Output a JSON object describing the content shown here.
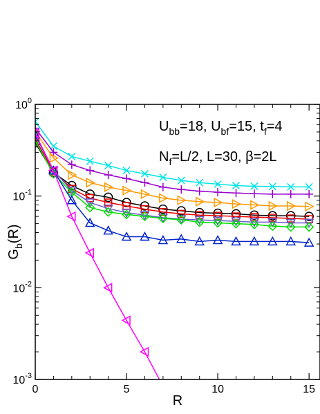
{
  "chart_data": {
    "type": "line",
    "title": "",
    "xlabel": "R",
    "ylabel_main": "G",
    "ylabel_sub": "b",
    "ylabel_tail": "(R)",
    "xlim": [
      0,
      15.6
    ],
    "ylim": [
      0.001,
      1
    ],
    "yscale": "log",
    "xticks": [
      0,
      5,
      10,
      15
    ],
    "xtick_labels": [
      "0",
      "5",
      "10",
      "15"
    ],
    "ytick_labels": [
      {
        "base": "10",
        "exp": "0"
      },
      {
        "base": "10",
        "exp": "-1"
      },
      {
        "base": "10",
        "exp": "-2"
      },
      {
        "base": "10",
        "exp": "-3"
      }
    ],
    "grid": false,
    "annotations": [
      {
        "parts": [
          {
            "t": "U",
            "sub": false
          },
          {
            "t": "bb",
            "sub": true
          },
          {
            "t": "=18, U",
            "sub": false
          },
          {
            "t": "bf",
            "sub": true
          },
          {
            "t": "=15, t",
            "sub": false
          },
          {
            "t": "f",
            "sub": true
          },
          {
            "t": "=4",
            "sub": false
          }
        ]
      },
      {
        "parts": [
          {
            "t": "N",
            "sub": false
          },
          {
            "t": "f",
            "sub": true
          },
          {
            "t": "=L/2, L=30, β=2L",
            "sub": false
          }
        ]
      }
    ],
    "series": [
      {
        "color": "#00e5e5",
        "marker": "x",
        "x": [
          0,
          1,
          2,
          3,
          4,
          5,
          6,
          7,
          8,
          9,
          10,
          11,
          12,
          13,
          14,
          15
        ],
        "y": [
          0.65,
          0.35,
          0.27,
          0.24,
          0.215,
          0.19,
          0.175,
          0.16,
          0.148,
          0.14,
          0.135,
          0.13,
          0.128,
          0.127,
          0.126,
          0.126
        ]
      },
      {
        "color": "#9900cc",
        "marker": "plus",
        "x": [
          0,
          1,
          2,
          3,
          4,
          5,
          6,
          7,
          8,
          9,
          10,
          11,
          12,
          13,
          14,
          15
        ],
        "y": [
          0.55,
          0.3,
          0.22,
          0.19,
          0.17,
          0.155,
          0.14,
          0.125,
          0.118,
          0.113,
          0.11,
          0.108,
          0.106,
          0.105,
          0.105,
          0.105
        ]
      },
      {
        "color": "#ff9900",
        "marker": "triangle-right",
        "x": [
          0,
          1,
          2,
          3,
          4,
          5,
          6,
          7,
          8,
          9,
          10,
          11,
          12,
          13,
          14,
          15
        ],
        "y": [
          0.5,
          0.26,
          0.17,
          0.14,
          0.125,
          0.115,
          0.105,
          0.095,
          0.09,
          0.087,
          0.085,
          0.082,
          0.08,
          0.078,
          0.078,
          0.077
        ]
      },
      {
        "color": "#000000",
        "marker": "circle",
        "x": [
          0,
          1,
          2,
          3,
          4,
          5,
          6,
          7,
          8,
          9,
          10,
          11,
          12,
          13,
          14,
          15
        ],
        "y": [
          0.38,
          0.18,
          0.13,
          0.105,
          0.097,
          0.085,
          0.078,
          0.072,
          0.069,
          0.066,
          0.065,
          0.064,
          0.062,
          0.061,
          0.061,
          0.06
        ]
      },
      {
        "color": "#ee0000",
        "marker": "square",
        "x": [
          0,
          1,
          2,
          3,
          4,
          5,
          6,
          7,
          8,
          9,
          10,
          11,
          12,
          13,
          14,
          15
        ],
        "y": [
          0.42,
          0.185,
          0.12,
          0.095,
          0.085,
          0.078,
          0.072,
          0.067,
          0.064,
          0.062,
          0.061,
          0.06,
          0.059,
          0.058,
          0.057,
          0.056
        ]
      },
      {
        "color": "#6a5acd",
        "marker": "triangle-down",
        "x": [
          0,
          1,
          2,
          3,
          4,
          5,
          6,
          7,
          8,
          9,
          10,
          11,
          12,
          13,
          14,
          15
        ],
        "y": [
          0.46,
          0.19,
          0.115,
          0.085,
          0.073,
          0.066,
          0.062,
          0.058,
          0.056,
          0.055,
          0.054,
          0.053,
          0.052,
          0.052,
          0.051,
          0.051
        ]
      },
      {
        "color": "#00dd00",
        "marker": "diamond",
        "x": [
          0,
          1,
          2,
          3,
          4,
          5,
          6,
          7,
          8,
          9,
          10,
          11,
          12,
          13,
          14,
          15
        ],
        "y": [
          0.4,
          0.175,
          0.11,
          0.075,
          0.067,
          0.063,
          0.06,
          0.057,
          0.055,
          0.052,
          0.051,
          0.05,
          0.049,
          0.047,
          0.046,
          0.046
        ]
      },
      {
        "color": "#0022cc",
        "marker": "triangle-up",
        "x": [
          0,
          1,
          2,
          3,
          4,
          5,
          6,
          7,
          8,
          9,
          10,
          11,
          12,
          13,
          14,
          15
        ],
        "y": [
          0.47,
          0.19,
          0.09,
          0.051,
          0.042,
          0.036,
          0.036,
          0.033,
          0.034,
          0.032,
          0.033,
          0.032,
          0.032,
          0.032,
          0.032,
          0.031
        ]
      },
      {
        "color": "#ff00ff",
        "marker": "triangle-left",
        "x": [
          0,
          1,
          2,
          3,
          4,
          5,
          6,
          6.8
        ],
        "y": [
          0.48,
          0.19,
          0.06,
          0.024,
          0.01,
          0.0044,
          0.002,
          0.001
        ]
      }
    ]
  }
}
